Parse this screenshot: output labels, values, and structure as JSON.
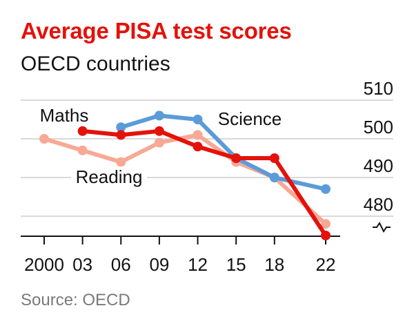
{
  "chart_data": {
    "type": "line",
    "title": "Average PISA test scores",
    "subtitle": "OECD countries",
    "source": "Source: OECD",
    "x": [
      2000,
      2003,
      2006,
      2009,
      2012,
      2015,
      2018,
      2022
    ],
    "x_tick_labels": [
      "2000",
      "03",
      "06",
      "09",
      "12",
      "15",
      "18",
      "22"
    ],
    "y_ticks": [
      480,
      490,
      500,
      510
    ],
    "ylim": [
      475,
      510
    ],
    "y_axis_position": "right",
    "y_axis_break": true,
    "grid": true,
    "series": [
      {
        "name": "Reading",
        "color": "#f7a995",
        "values": [
          500,
          497,
          494,
          499,
          501,
          494,
          490,
          478
        ]
      },
      {
        "name": "Science",
        "color": "#5b9bd9",
        "values": [
          null,
          null,
          503,
          506,
          505,
          495,
          490,
          487
        ]
      },
      {
        "name": "Maths",
        "color": "#e3120b",
        "values": [
          null,
          502,
          501,
          502,
          498,
          495,
          495,
          475
        ]
      }
    ]
  }
}
